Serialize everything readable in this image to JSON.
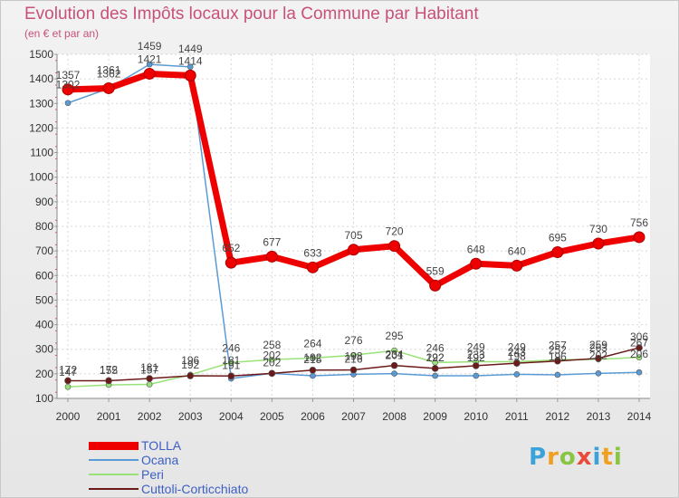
{
  "title": "Evolution des Impôts locaux pour la Commune par Habitant",
  "subtitle": "(en € et par an)",
  "logo_text": "Proxiti",
  "chart_data": {
    "type": "line",
    "title": "Evolution des Impôts locaux pour la Commune par Habitant",
    "ylabel": "(en € et par an)",
    "xlabel": "",
    "x": [
      "2000",
      "2001",
      "2002",
      "2003",
      "2004",
      "2005",
      "2006",
      "2007",
      "2008",
      "2009",
      "2010",
      "2011",
      "2012",
      "2013",
      "2014"
    ],
    "ylim": [
      100,
      1500
    ],
    "yticks": [
      "100",
      "200",
      "300",
      "400",
      "500",
      "600",
      "700",
      "800",
      "900",
      "1000",
      "1100",
      "1200",
      "1300",
      "1400",
      "1500"
    ],
    "grid": true,
    "legend": "bottom-left",
    "series": [
      {
        "name": "TOLLA",
        "color": "#ee0000",
        "values": [
          1357,
          1362,
          1421,
          1414,
          652,
          677,
          633,
          705,
          720,
          559,
          648,
          640,
          695,
          730,
          756
        ],
        "labels": [
          "1357",
          "1362",
          "1421",
          "1414",
          "652",
          "677",
          "633",
          "705",
          "720",
          "559",
          "648",
          "640",
          "695",
          "730",
          "756"
        ]
      },
      {
        "name": "Ocana",
        "color": "#5b9bd5",
        "values": [
          1302,
          1361,
          1459,
          1449,
          181,
          202,
          192,
          198,
          201,
          192,
          192,
          198,
          196,
          202,
          206
        ],
        "labels": [
          "1302",
          "1361",
          "1459",
          "1449",
          "181",
          "202",
          "192",
          "198",
          "201",
          "192",
          "192",
          "198",
          "196",
          "202",
          "206"
        ]
      },
      {
        "name": "Peri",
        "color": "#99e27a",
        "values": [
          147,
          155,
          157,
          196,
          246,
          258,
          264,
          276,
          295,
          246,
          249,
          249,
          257,
          259,
          267
        ],
        "labels": [
          "147",
          "155",
          "157",
          "196",
          "246",
          "258",
          "264",
          "276",
          "295",
          "246",
          "249",
          "249",
          "257",
          "259",
          "267"
        ]
      },
      {
        "name": "Cuttoli-Corticchiato",
        "color": "#6b1a1a",
        "values": [
          172,
          172,
          181,
          192,
          191,
          202,
          215,
          216,
          234,
          222,
          233,
          243,
          252,
          263,
          306
        ],
        "labels": [
          "172",
          "172",
          "181",
          "192",
          "191",
          "202",
          "215",
          "216",
          "234",
          "222",
          "233",
          "243",
          "252",
          "263",
          "306"
        ]
      }
    ]
  }
}
